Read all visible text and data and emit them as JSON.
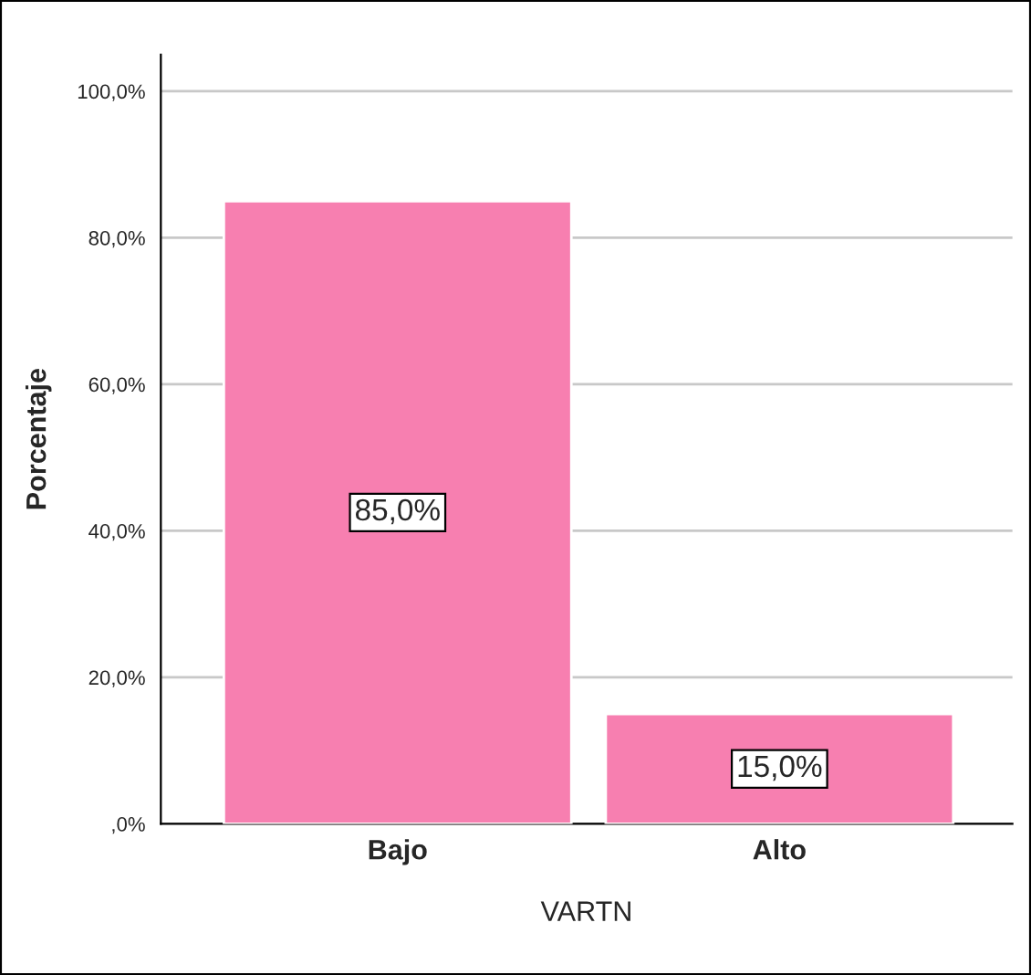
{
  "chart_data": {
    "type": "bar",
    "xlabel": "VARTN",
    "ylabel": "Porcentaje",
    "categories": [
      "Bajo",
      "Alto"
    ],
    "values": [
      85.0,
      15.0
    ],
    "color": "#f77fb0",
    "value_labels": [
      "85,0%",
      "15,0%"
    ],
    "ylim": [
      0,
      105
    ],
    "yticks": [
      {
        "value": 0,
        "label": ",0%"
      },
      {
        "value": 20,
        "label": "20,0%"
      },
      {
        "value": 40,
        "label": "40,0%"
      },
      {
        "value": 60,
        "label": "60,0%"
      },
      {
        "value": 80,
        "label": "80,0%"
      },
      {
        "value": 100,
        "label": "100,0%"
      }
    ],
    "grid": "y",
    "legend": false
  }
}
